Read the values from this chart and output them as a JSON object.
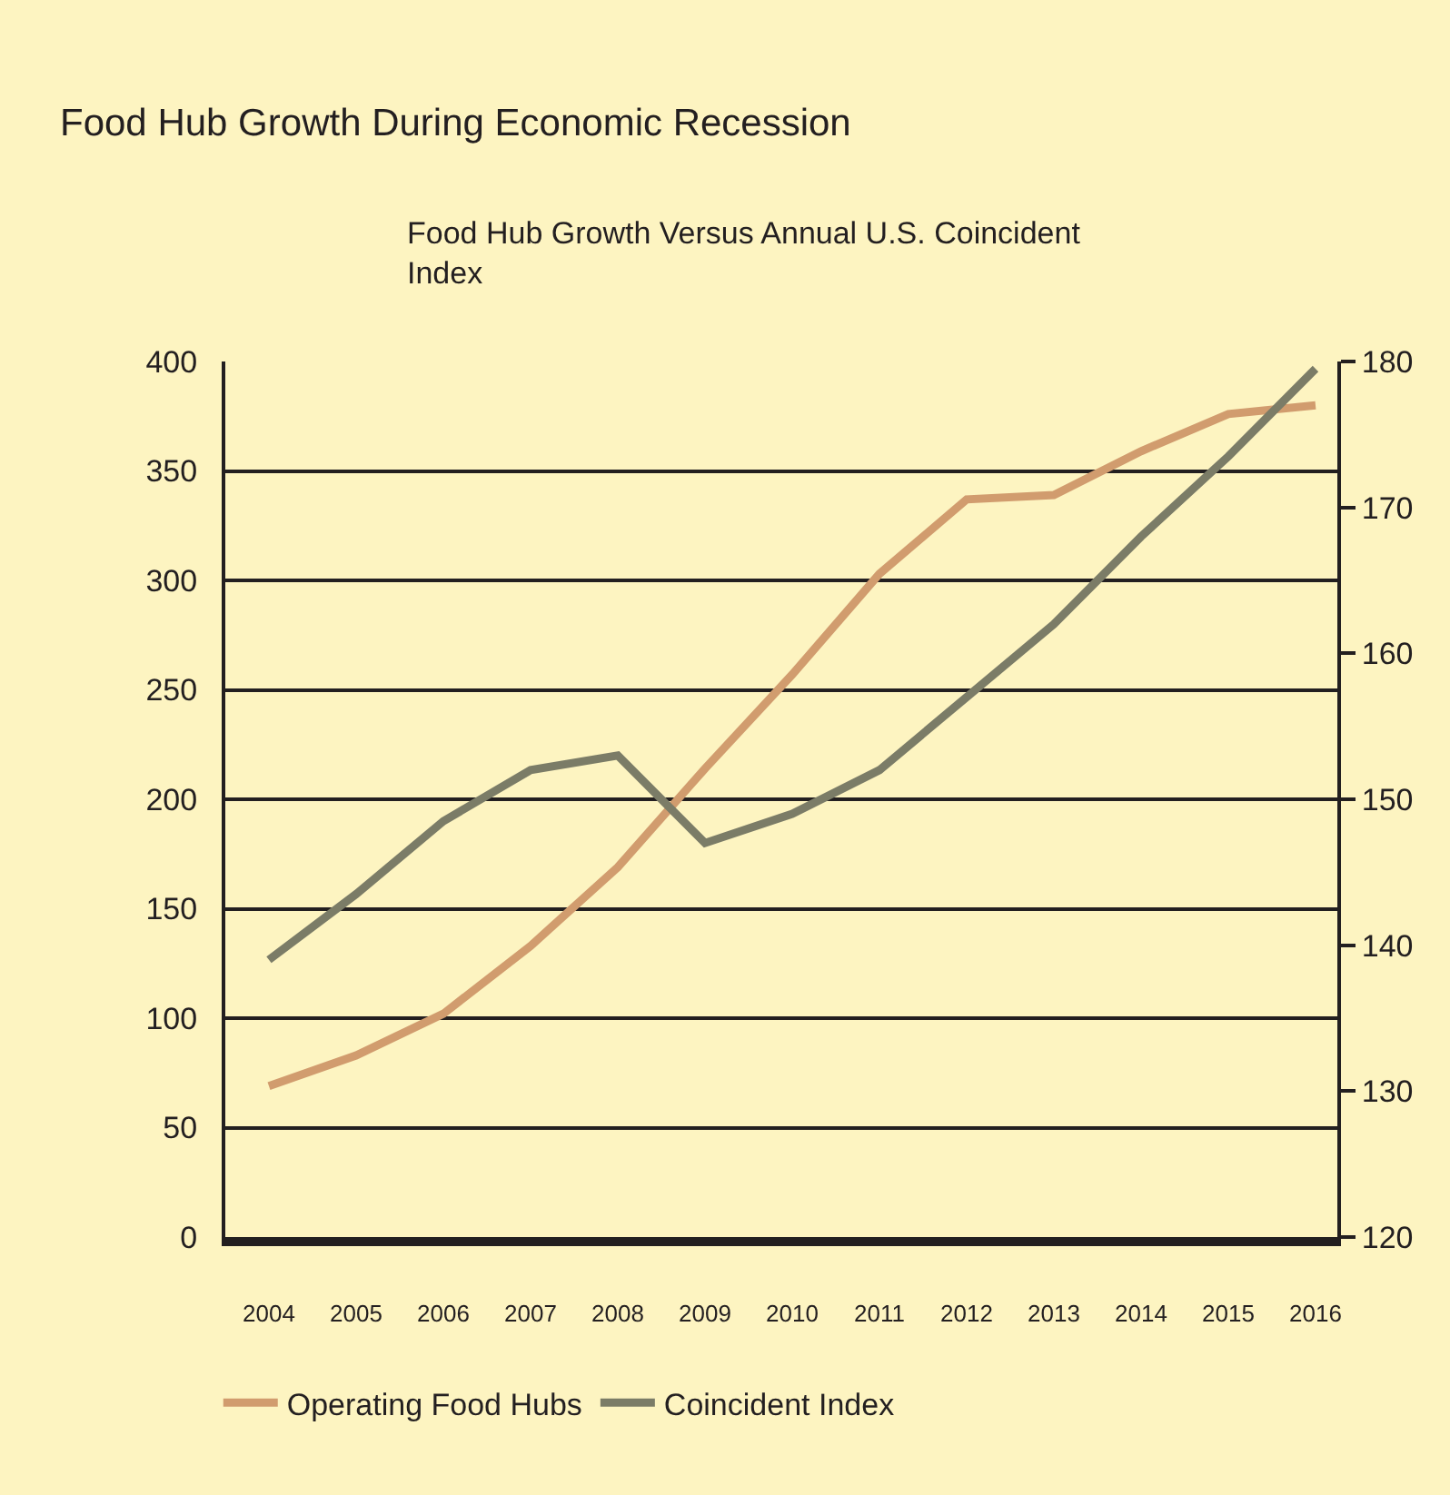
{
  "chart_data": {
    "type": "line",
    "title": "Food Hub Growth During Economic Recession",
    "subtitle": "Food Hub Growth Versus Annual U.S. Coincident Index",
    "categories": [
      "2004",
      "2005",
      "2006",
      "2007",
      "2008",
      "2009",
      "2010",
      "2011",
      "2012",
      "2013",
      "2014",
      "2015",
      "2016"
    ],
    "series": [
      {
        "name": "Operating Food Hubs",
        "color": "#d19c6e",
        "values": [
          69,
          83,
          102,
          133,
          169,
          214,
          257,
          303,
          337,
          339,
          359,
          376,
          380
        ]
      },
      {
        "name": "Coincident Index",
        "color": "#7b7c67",
        "axis": "y2",
        "values": [
          139,
          143.5,
          148.5,
          152,
          153,
          147,
          149,
          152,
          157,
          162,
          168,
          173.5,
          179.5
        ]
      }
    ],
    "ylim": [
      0,
      400
    ],
    "yticks": [
      0,
      50,
      100,
      150,
      200,
      250,
      300,
      350,
      400
    ],
    "y2lim": [
      120,
      180
    ],
    "y2ticks": [
      120,
      130,
      140,
      150,
      160,
      170,
      180
    ],
    "grid": "y",
    "legend": "bottom",
    "line_style": "solid"
  }
}
